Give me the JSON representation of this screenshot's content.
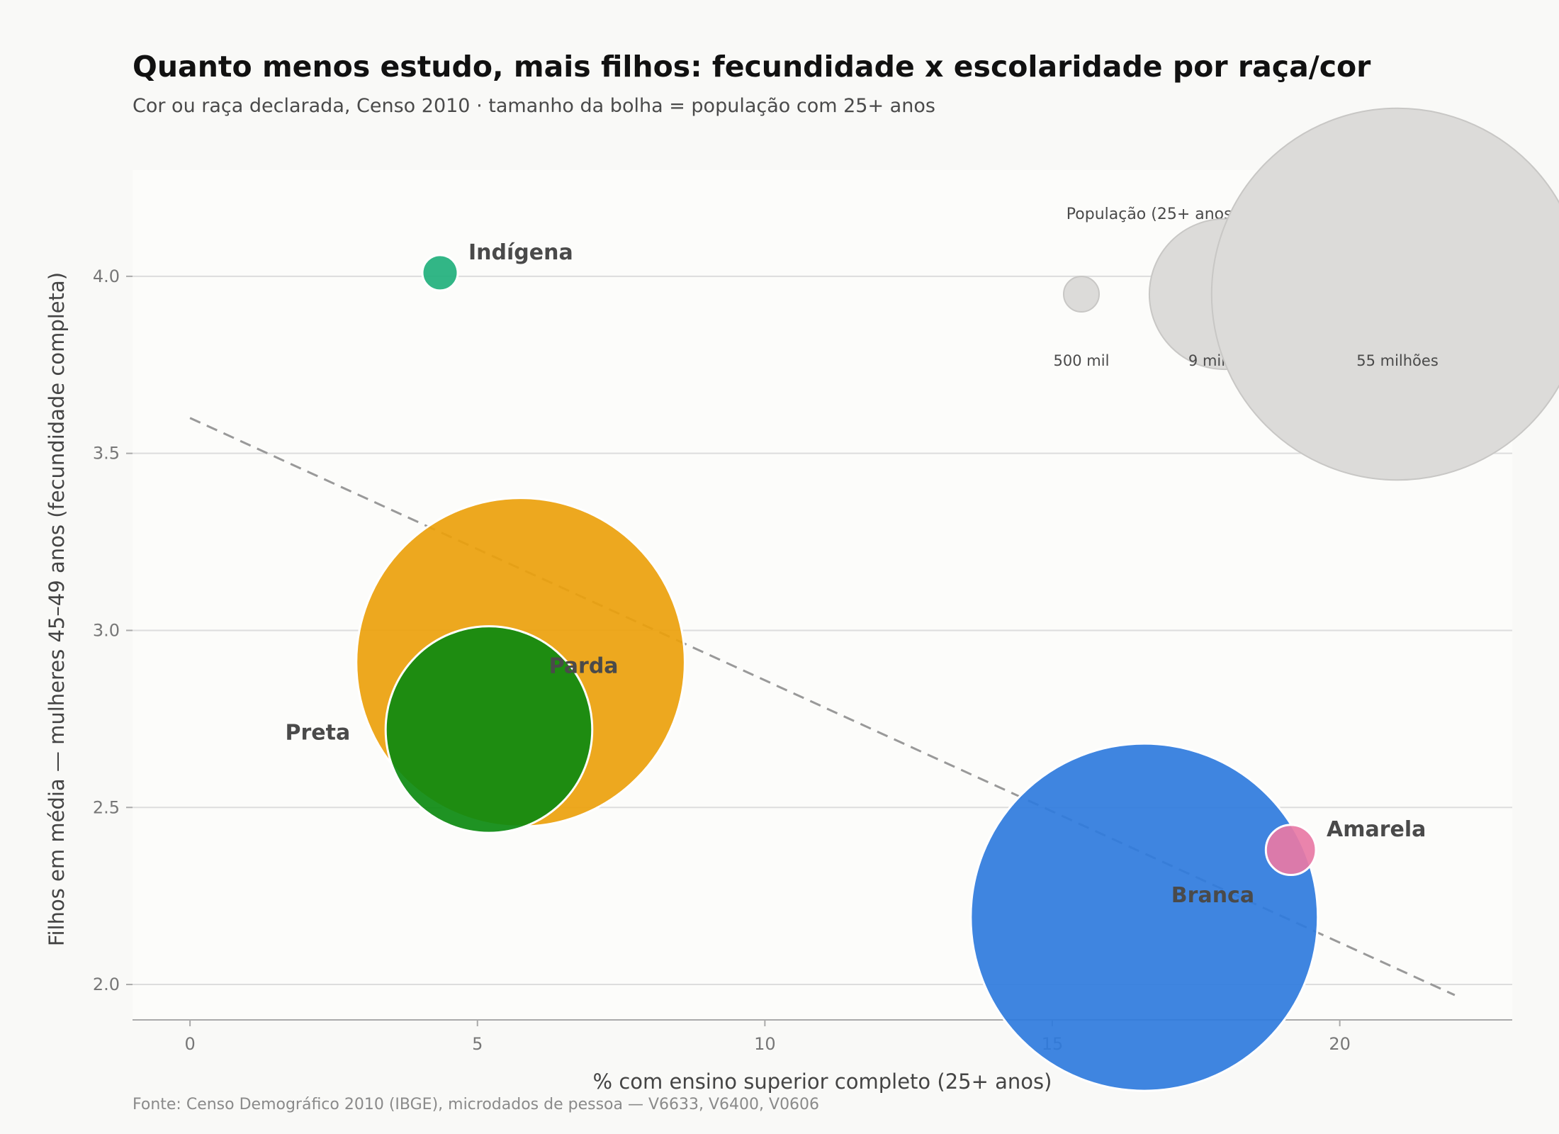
{
  "title": "Quanto menos estudo, mais filhos: fecundidade x escolaridade por raça/cor",
  "subtitle": "Cor ou raça declarada, Censo 2010 · tamanho da bolha = população com 25+ anos",
  "source": "Fonte: Censo Demográfico 2010 (IBGE), microdados de pessoa — V6633, V6400, V0606",
  "chart_data": {
    "type": "scatter",
    "xlabel": "% com ensino superior completo (25+ anos)",
    "ylabel": "Filhos em média — mulheres 45–49 anos (fecundidade completa)",
    "xlim": [
      -1,
      23
    ],
    "ylim": [
      1.9,
      4.3
    ],
    "xticks": [
      0,
      5,
      10,
      15,
      20
    ],
    "yticks": [
      2.0,
      2.5,
      3.0,
      3.5,
      4.0
    ],
    "x_tick_labels": [
      "0",
      "5",
      "10",
      "15",
      "20"
    ],
    "y_tick_labels": [
      "2.0",
      "2.5",
      "3.0",
      "3.5",
      "4.0"
    ],
    "grid": "horizontal",
    "points": [
      {
        "label": "Indígena",
        "x": 4.35,
        "y": 4.01,
        "population_millions": 0.5,
        "color": "#21b07c",
        "label_side": "right-above"
      },
      {
        "label": "Parda",
        "x": 5.75,
        "y": 2.91,
        "population_millions": 43,
        "color": "#eba10c",
        "label_side": "right"
      },
      {
        "label": "Preta",
        "x": 5.2,
        "y": 2.72,
        "population_millions": 17,
        "color": "#0c8a10",
        "label_side": "left"
      },
      {
        "label": "Branca",
        "x": 16.6,
        "y": 2.19,
        "population_millions": 48,
        "color": "#2f7bdd",
        "label_side": "right-above"
      },
      {
        "label": "Amarela",
        "x": 19.15,
        "y": 2.38,
        "population_millions": 1.0,
        "color": "#e87aa5",
        "label_side": "right-above"
      }
    ],
    "trend_line": {
      "x": [
        0,
        22
      ],
      "y": [
        3.6,
        1.97
      ],
      "color": "#999999",
      "style": "dashed"
    },
    "size_legend": {
      "title": "População (25+ anos)",
      "items": [
        {
          "label": "500 mil",
          "population_millions": 0.5
        },
        {
          "label": "9 milhões",
          "population_millions": 9
        },
        {
          "label": "55 milhões",
          "population_millions": 55
        }
      ],
      "placement": "top-right",
      "color": "#dcdbd9"
    }
  }
}
